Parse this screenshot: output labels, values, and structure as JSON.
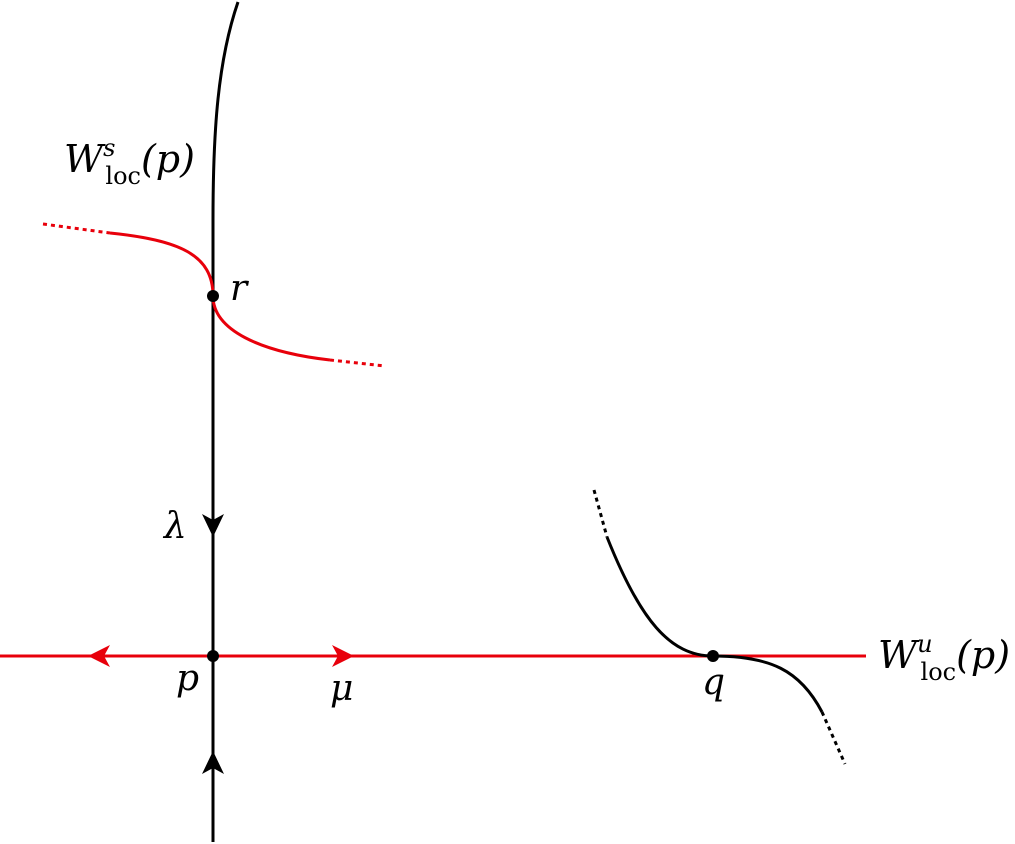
{
  "diagram": {
    "colors": {
      "stable_axis": "#000000",
      "unstable_axis": "#e8000b",
      "red_curve": "#e8000b",
      "black_curve": "#000000",
      "point": "#000000"
    },
    "labels": {
      "ws_main": "W",
      "ws_sup": "s",
      "ws_sub": "loc",
      "ws_arg": "(p)",
      "wu_main": "W",
      "wu_sup": "u",
      "wu_sub": "loc",
      "wu_arg": "(p)",
      "lambda": "λ",
      "mu": "μ",
      "p": "p",
      "q": "q",
      "r": "r"
    }
  }
}
